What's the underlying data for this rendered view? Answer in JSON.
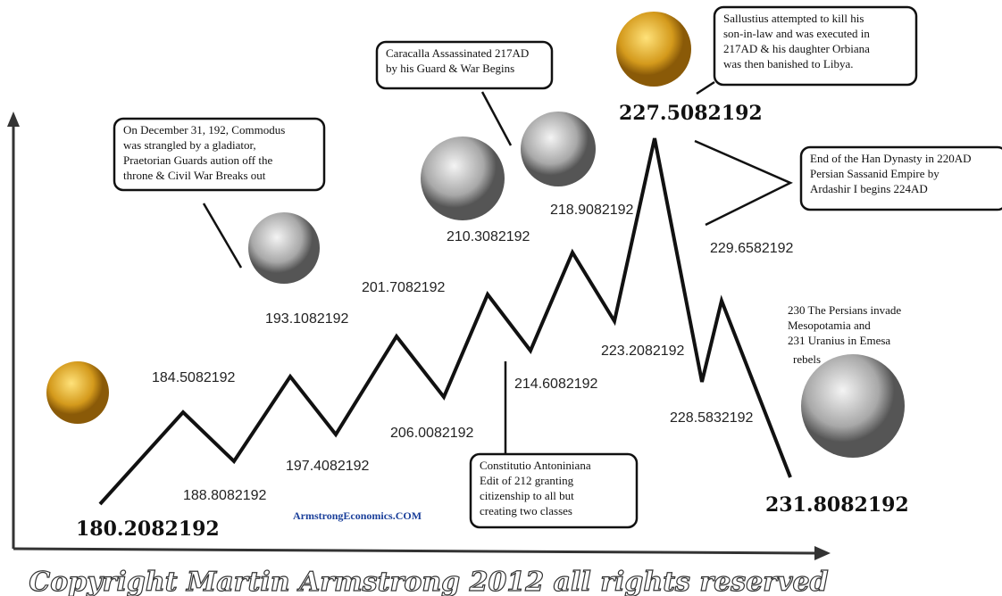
{
  "points": [
    "180.2082192",
    "184.5082192",
    "188.8082192",
    "193.1082192",
    "197.4082192",
    "201.7082192",
    "206.0082192",
    "210.3082192",
    "214.6082192",
    "218.9082192",
    "223.2082192",
    "227.5082192",
    "228.5832192",
    "229.6582192",
    "231.8082192"
  ],
  "notes": [
    {
      "lines": [
        "On December 31, 192, Commodus",
        "was strangled by a gladiator,",
        "Praetorian Guards aution off the",
        "throne & Civil War Breaks out"
      ]
    },
    {
      "lines": [
        "Caracalla Assassinated 217AD",
        "by his Guard & War Begins"
      ]
    },
    {
      "lines": [
        "Sallustius attempted to kill his",
        "son-in-law and was executed in",
        "217AD & his daughter Orbiana",
        "was then banished to Libya."
      ]
    },
    {
      "lines": [
        "End of the Han Dynasty in 220AD",
        "Persian  Sassanid Empire by",
        "Ardashir I begins 224AD"
      ]
    },
    {
      "lines": [
        "230 The Persians invade",
        "Mesopotamia and",
        "231  Uranius in Emesa",
        "rebels"
      ]
    },
    {
      "lines": [
        "Constitutio Antoniniana",
        "Edit of 212 granting",
        "citizenship to all but",
        "creating two classes"
      ]
    }
  ],
  "watermark": "ArmstrongEconomics.COM",
  "copyright": "Copyright Martin Armstrong 2012 all rights reserved"
}
